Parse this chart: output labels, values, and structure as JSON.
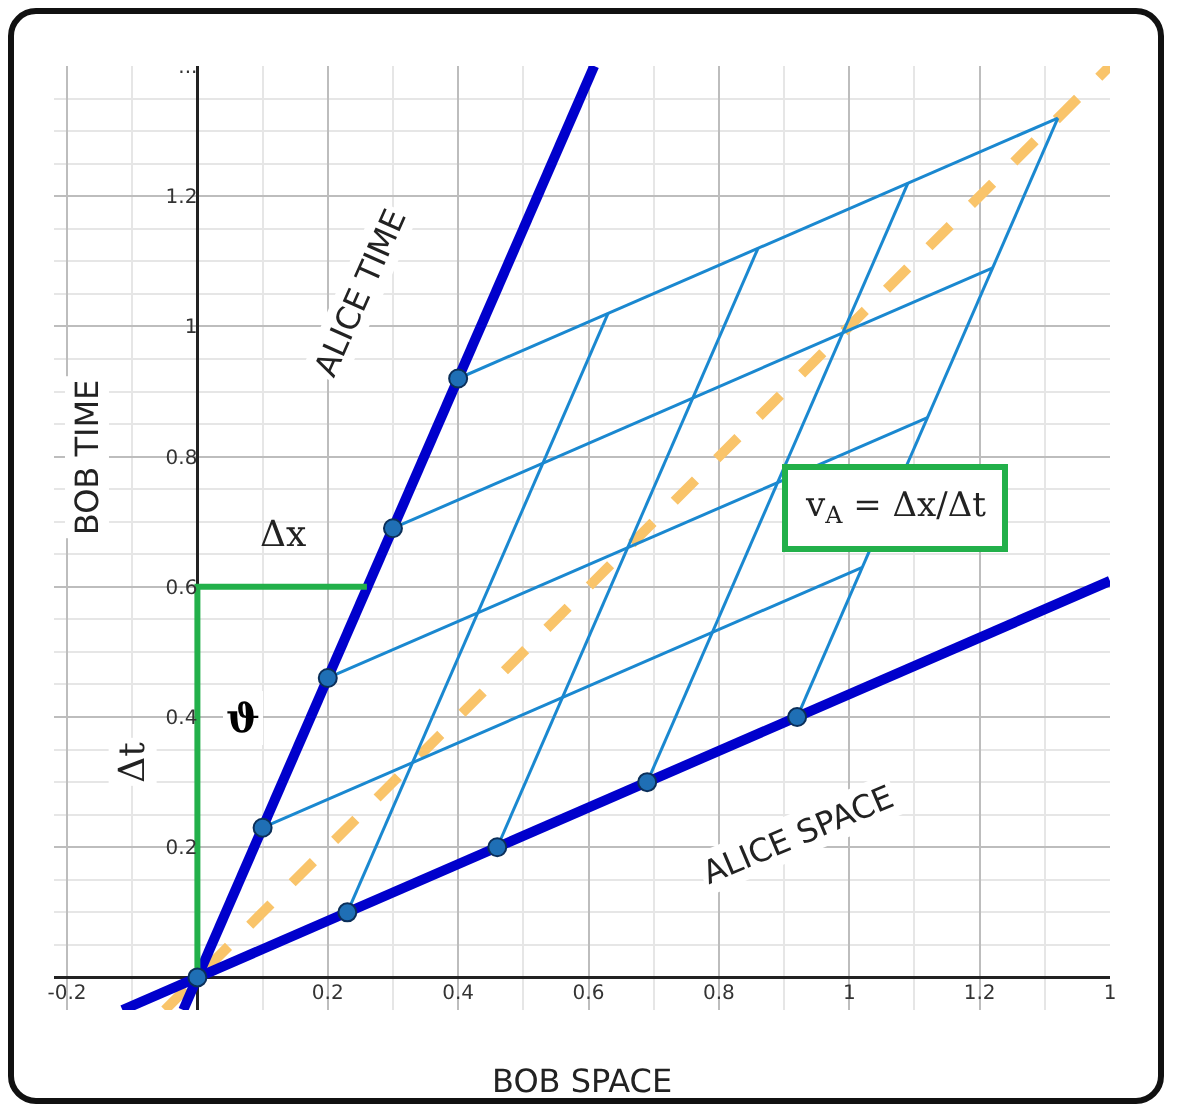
{
  "chart_data": {
    "type": "line",
    "xlabel": "BOB SPACE",
    "ylabel": "BOB TIME",
    "xlim": [
      -0.22,
      1.4
    ],
    "ylim": [
      -0.05,
      1.4
    ],
    "xticks": [
      -0.2,
      0.2,
      0.4,
      0.6,
      0.8,
      1,
      1.2,
      {
        "value": 1.4,
        "label": "1"
      }
    ],
    "yticks": [
      0.2,
      0.4,
      0.6,
      0.8,
      1,
      1.2,
      {
        "value": 1.4,
        "label": "..."
      }
    ],
    "grid": true,
    "marker": "none",
    "annotations": [
      "ALICE TIME",
      "ALICE SPACE",
      "Δx",
      "Δt",
      "ϑ",
      "v$_{A}$ = Δx/Δt"
    ],
    "series": [
      {
        "color": "#f9c46a",
        "line_style": "dashed",
        "x": [
          -0.05,
          1.4
        ],
        "values": [
          -0.05,
          1.4
        ]
      },
      {
        "color": "#1a88d0",
        "x": [
          0.1,
          1.02
        ],
        "values": [
          0.23,
          0.63
        ]
      },
      {
        "color": "#1a88d0",
        "x": [
          0.2,
          1.12
        ],
        "values": [
          0.46,
          0.86
        ]
      },
      {
        "color": "#1a88d0",
        "x": [
          0.3,
          1.22
        ],
        "values": [
          0.69,
          1.09
        ]
      },
      {
        "color": "#1a88d0",
        "x": [
          0.4,
          1.32
        ],
        "values": [
          0.92,
          1.32
        ]
      },
      {
        "color": "#1a88d0",
        "x": [
          0.23,
          0.63
        ],
        "values": [
          0.1,
          1.02
        ]
      },
      {
        "color": "#1a88d0",
        "x": [
          0.46,
          0.86
        ],
        "values": [
          0.2,
          1.12
        ]
      },
      {
        "color": "#1a88d0",
        "x": [
          0.69,
          1.09
        ],
        "values": [
          0.3,
          1.22
        ]
      },
      {
        "color": "#1a88d0",
        "x": [
          0.92,
          1.32
        ],
        "values": [
          0.4,
          1.32
        ]
      },
      {
        "color": "#0000cc",
        "x": [
          -0.0217,
          0.6087
        ],
        "values": [
          -0.05,
          1.4
        ]
      },
      {
        "color": "#0000cc",
        "x": [
          -0.115,
          1.4
        ],
        "values": [
          -0.05,
          0.609
        ]
      },
      {
        "color": "#22b04a",
        "x": [
          0,
          0,
          0.26
        ],
        "values": [
          0,
          0.6,
          0.6
        ]
      },
      {
        "type": "scatter",
        "marker": "circle",
        "color": "#1f6fb5",
        "x": [
          0,
          0.1,
          0.2,
          0.3,
          0.4,
          0.23,
          0.46,
          0.69,
          0.92
        ],
        "values": [
          0,
          0.23,
          0.46,
          0.69,
          0.92,
          0.1,
          0.2,
          0.3,
          0.4
        ]
      }
    ]
  }
}
